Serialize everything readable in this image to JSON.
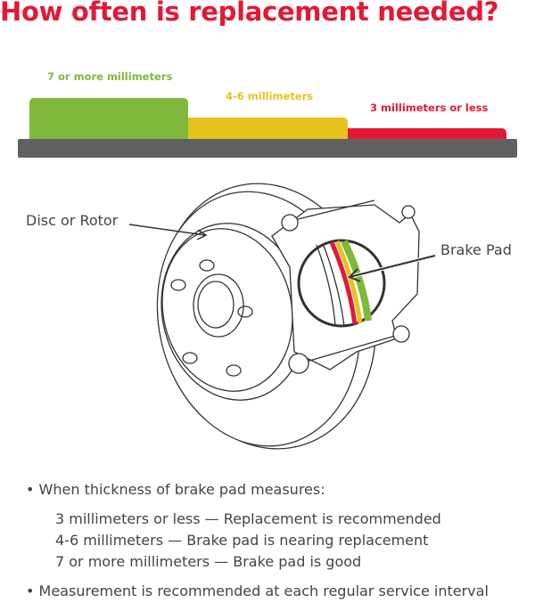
{
  "title": "How often is replacement needed?",
  "levels": [
    {
      "label": "7 or more millimeters",
      "color": "#7fb83a"
    },
    {
      "label": "4-6 millimeters",
      "color": "#e6c21c"
    },
    {
      "label": "3 millimeters or less",
      "color": "#e31837"
    }
  ],
  "base_color": "#5f6062",
  "diagram": {
    "rotor_label": "Disc or Rotor",
    "pad_label": "Brake Pad"
  },
  "notes": {
    "bullet1": "When thickness of brake pad measures:",
    "items": [
      "3 millimeters or less — Replacement is recommended",
      "4-6 millimeters — Brake pad is nearing replacement",
      "7 or more millimeters — Brake pad is good"
    ],
    "bullet2": "Measurement is recommended at each regular service interval"
  }
}
